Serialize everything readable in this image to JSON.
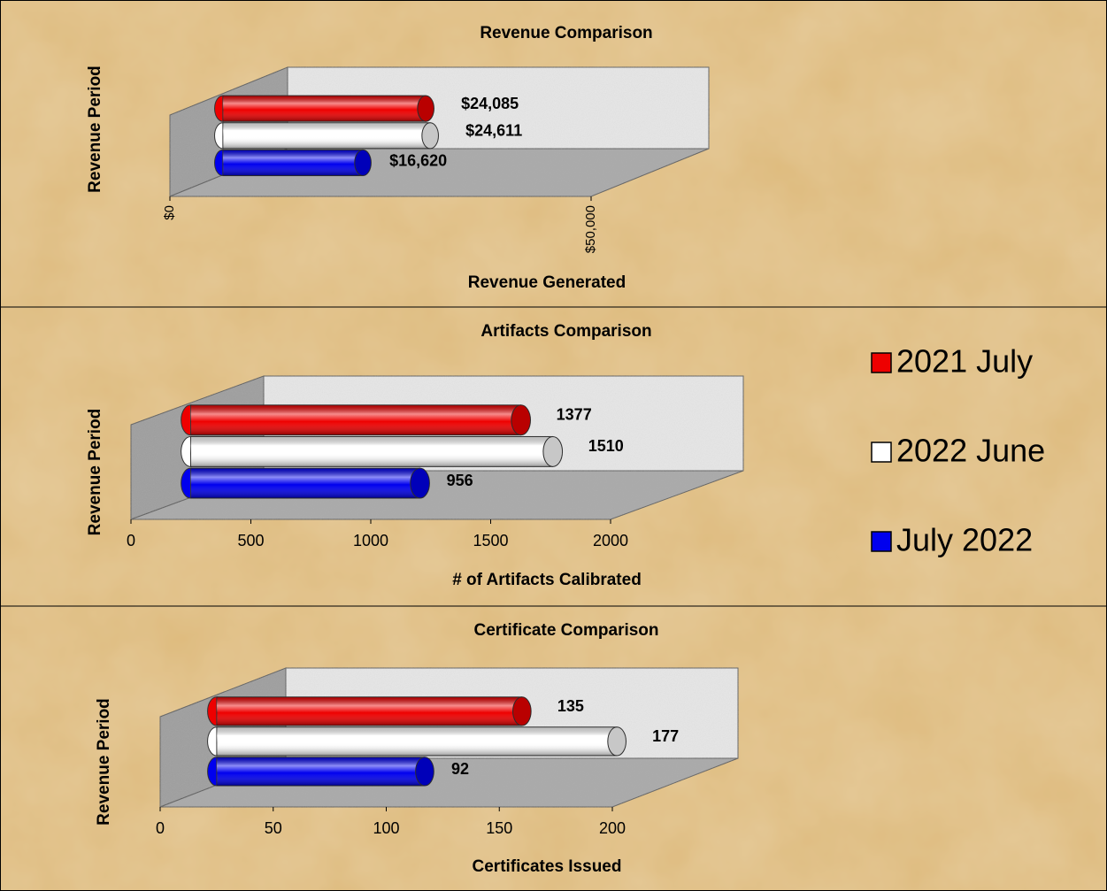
{
  "chart_data": [
    {
      "type": "bar",
      "orientation": "horizontal",
      "three_d": true,
      "title": "Revenue Comparison",
      "xlabel": "Revenue Generated",
      "ylabel": "Revenue Period",
      "values": [
        24085,
        24611,
        16620
      ],
      "value_labels": [
        "$24,085",
        "$24,611",
        "$16,620"
      ],
      "xlim": [
        0,
        50000
      ],
      "xticks": [
        {
          "value": 0,
          "label": "$0"
        },
        {
          "value": 50000,
          "label": "$50,000"
        }
      ],
      "xtick_rotation": -90
    },
    {
      "type": "bar",
      "orientation": "horizontal",
      "three_d": true,
      "title": "Artifacts Comparison",
      "xlabel": "# of Artifacts Calibrated",
      "ylabel": "Revenue Period",
      "values": [
        1377,
        1510,
        956
      ],
      "xlim": [
        0,
        2000
      ],
      "xticks": [
        0,
        500,
        1000,
        1500,
        2000
      ]
    },
    {
      "type": "bar",
      "orientation": "horizontal",
      "three_d": true,
      "title": "Certificate Comparison",
      "xlabel": "Certificates Issued",
      "ylabel": "Revenue Period",
      "values": [
        135,
        177,
        92
      ],
      "xlim": [
        0,
        200
      ],
      "xticks": [
        0,
        50,
        100,
        150,
        200
      ]
    }
  ],
  "legend": {
    "position": "right",
    "series": [
      {
        "name": "2021 July",
        "color": "#ee0000"
      },
      {
        "name": "2022 June",
        "color": "#ffffff"
      },
      {
        "name": "July 2022",
        "color": "#0000ee"
      }
    ]
  }
}
